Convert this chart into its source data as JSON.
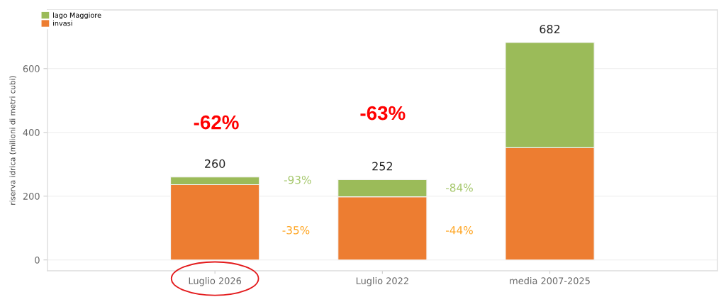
{
  "chart_data": {
    "type": "bar",
    "stacked": true,
    "categories": [
      "Luglio 2026",
      "Luglio 2022",
      "media 2007-2025"
    ],
    "series": [
      {
        "name": "invasi",
        "color": "#ed7d31",
        "values": [
          236,
          198,
          352
        ]
      },
      {
        "name": "lago Maggiore",
        "color": "#9bbb59",
        "values": [
          24,
          54,
          330
        ]
      }
    ],
    "totals": [
      "260",
      "252",
      "682"
    ],
    "ylabel": "riserva idrica (milioni di metri cubi)",
    "ylim": [
      -34,
      784
    ],
    "yticks": [
      0,
      200,
      400,
      600
    ],
    "grid": "y",
    "legend": "top left",
    "annotations": [
      "-62%",
      "-63%",
      "-93%",
      "-35%",
      "-84%",
      "-44%"
    ]
  }
}
